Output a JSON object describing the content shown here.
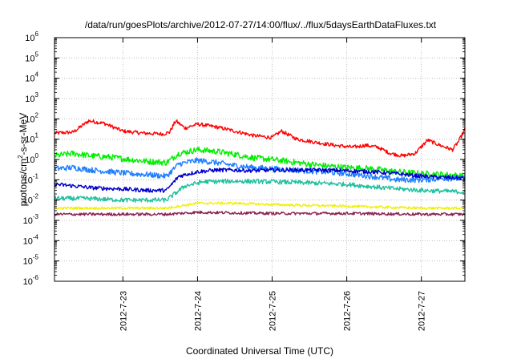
{
  "chart_data": {
    "type": "line",
    "title": "/data/run/goesPlots/archive/2012-07-27/14:00/flux/../flux/5daysEarthDataFluxes.txt",
    "xlabel": "Coordinated Universal Time (UTC)",
    "ylabel_base": "protons/cm",
    "ylabel_sup": "2",
    "ylabel_rest": "-s-sr-MeV",
    "y_scale": "log",
    "ylim": [
      1e-06,
      1000000.0
    ],
    "xlim": [
      "2012-07-22 02:00",
      "2012-07-27 14:00"
    ],
    "grid": true,
    "y_tick_labels": [
      {
        "value": 1e-06,
        "base": "10",
        "exp": "-6"
      },
      {
        "value": 1e-05,
        "base": "10",
        "exp": "-5"
      },
      {
        "value": 0.0001,
        "base": "10",
        "exp": "-4"
      },
      {
        "value": 0.001,
        "base": "10",
        "exp": "-3"
      },
      {
        "value": 0.01,
        "base": "10",
        "exp": "-2"
      },
      {
        "value": 0.1,
        "base": "10",
        "exp": "-1"
      },
      {
        "value": 1.0,
        "base": "10",
        "exp": "0"
      },
      {
        "value": 10.0,
        "base": "10",
        "exp": "1"
      },
      {
        "value": 100.0,
        "base": "10",
        "exp": "2"
      },
      {
        "value": 1000.0,
        "base": "10",
        "exp": "3"
      },
      {
        "value": 10000.0,
        "base": "10",
        "exp": "4"
      },
      {
        "value": 100000.0,
        "base": "10",
        "exp": "5"
      },
      {
        "value": 1000000.0,
        "base": "10",
        "exp": "6"
      }
    ],
    "x_ticks": [
      {
        "date": "2012-07-23 00:00",
        "label": "2012-7-23"
      },
      {
        "date": "2012-07-24 00:00",
        "label": "2012-7-24"
      },
      {
        "date": "2012-07-25 00:00",
        "label": "2012-7-25"
      },
      {
        "date": "2012-07-26 00:00",
        "label": "2012-7-26"
      },
      {
        "date": "2012-07-27 00:00",
        "label": "2012-7-27"
      }
    ],
    "series": [
      {
        "color": "#ff0000",
        "noise": 0.09,
        "points": [
          [
            "2012-07-22 02:00",
            20
          ],
          [
            "2012-07-22 08:00",
            22
          ],
          [
            "2012-07-22 13:00",
            80
          ],
          [
            "2012-07-22 18:00",
            60
          ],
          [
            "2012-07-23 00:00",
            25
          ],
          [
            "2012-07-23 06:00",
            20
          ],
          [
            "2012-07-23 13:00",
            18
          ],
          [
            "2012-07-23 15:00",
            22
          ],
          [
            "2012-07-23 17:00",
            80
          ],
          [
            "2012-07-23 20:00",
            35
          ],
          [
            "2012-07-24 00:00",
            55
          ],
          [
            "2012-07-24 06:00",
            40
          ],
          [
            "2012-07-24 12:00",
            25
          ],
          [
            "2012-07-24 18:00",
            15
          ],
          [
            "2012-07-25 00:00",
            12
          ],
          [
            "2012-07-25 03:00",
            25
          ],
          [
            "2012-07-25 08:00",
            10
          ],
          [
            "2012-07-25 14:00",
            7
          ],
          [
            "2012-07-25 20:00",
            5
          ],
          [
            "2012-07-26 02:00",
            4
          ],
          [
            "2012-07-26 06:00",
            5
          ],
          [
            "2012-07-26 10:00",
            4
          ],
          [
            "2012-07-26 14:00",
            2
          ],
          [
            "2012-07-26 18:00",
            1.5
          ],
          [
            "2012-07-26 22:00",
            2
          ],
          [
            "2012-07-27 02:00",
            9
          ],
          [
            "2012-07-27 06:00",
            5
          ],
          [
            "2012-07-27 10:00",
            3
          ],
          [
            "2012-07-27 12:00",
            8
          ],
          [
            "2012-07-27 14:00",
            30
          ]
        ]
      },
      {
        "color": "#00ee00",
        "noise": 0.15,
        "points": [
          [
            "2012-07-22 02:00",
            1.5
          ],
          [
            "2012-07-22 08:00",
            2.0
          ],
          [
            "2012-07-22 14:00",
            1.5
          ],
          [
            "2012-07-22 20:00",
            1.3
          ],
          [
            "2012-07-23 02:00",
            1.0
          ],
          [
            "2012-07-23 08:00",
            0.8
          ],
          [
            "2012-07-23 14:00",
            0.7
          ],
          [
            "2012-07-23 18:00",
            2.0
          ],
          [
            "2012-07-24 00:00",
            3.0
          ],
          [
            "2012-07-24 06:00",
            2.5
          ],
          [
            "2012-07-24 12:00",
            1.8
          ],
          [
            "2012-07-24 18:00",
            1.2
          ],
          [
            "2012-07-25 00:00",
            1.0
          ],
          [
            "2012-07-25 08:00",
            0.7
          ],
          [
            "2012-07-25 16:00",
            0.5
          ],
          [
            "2012-07-26 00:00",
            0.4
          ],
          [
            "2012-07-26 08:00",
            0.35
          ],
          [
            "2012-07-26 16:00",
            0.25
          ],
          [
            "2012-07-27 00:00",
            0.2
          ],
          [
            "2012-07-27 08:00",
            0.18
          ],
          [
            "2012-07-27 14:00",
            0.15
          ]
        ]
      },
      {
        "color": "#1e7fff",
        "noise": 0.14,
        "points": [
          [
            "2012-07-22 02:00",
            0.35
          ],
          [
            "2012-07-22 08:00",
            0.4
          ],
          [
            "2012-07-22 14:00",
            0.3
          ],
          [
            "2012-07-22 20:00",
            0.25
          ],
          [
            "2012-07-23 02:00",
            0.2
          ],
          [
            "2012-07-23 08:00",
            0.18
          ],
          [
            "2012-07-23 14:00",
            0.15
          ],
          [
            "2012-07-23 18:00",
            0.6
          ],
          [
            "2012-07-24 00:00",
            0.9
          ],
          [
            "2012-07-24 06:00",
            0.7
          ],
          [
            "2012-07-24 12:00",
            0.5
          ],
          [
            "2012-07-24 18:00",
            0.4
          ],
          [
            "2012-07-25 00:00",
            0.35
          ],
          [
            "2012-07-25 08:00",
            0.3
          ],
          [
            "2012-07-25 16:00",
            0.25
          ],
          [
            "2012-07-26 00:00",
            0.2
          ],
          [
            "2012-07-26 08:00",
            0.15
          ],
          [
            "2012-07-26 16:00",
            0.1
          ],
          [
            "2012-07-27 00:00",
            0.1
          ],
          [
            "2012-07-27 08:00",
            0.12
          ],
          [
            "2012-07-27 14:00",
            0.11
          ]
        ]
      },
      {
        "color": "#0000cc",
        "noise": 0.1,
        "points": [
          [
            "2012-07-22 02:00",
            0.06
          ],
          [
            "2012-07-22 08:00",
            0.05
          ],
          [
            "2012-07-22 14:00",
            0.04
          ],
          [
            "2012-07-23 00:00",
            0.035
          ],
          [
            "2012-07-23 08:00",
            0.03
          ],
          [
            "2012-07-23 14:00",
            0.03
          ],
          [
            "2012-07-23 18:00",
            0.15
          ],
          [
            "2012-07-24 00:00",
            0.25
          ],
          [
            "2012-07-24 06:00",
            0.3
          ],
          [
            "2012-07-24 12:00",
            0.3
          ],
          [
            "2012-07-24 18:00",
            0.28
          ],
          [
            "2012-07-25 00:00",
            0.3
          ],
          [
            "2012-07-25 08:00",
            0.3
          ],
          [
            "2012-07-25 16:00",
            0.3
          ],
          [
            "2012-07-26 00:00",
            0.28
          ],
          [
            "2012-07-26 08:00",
            0.25
          ],
          [
            "2012-07-26 16:00",
            0.2
          ],
          [
            "2012-07-27 00:00",
            0.15
          ],
          [
            "2012-07-27 08:00",
            0.13
          ],
          [
            "2012-07-27 14:00",
            0.12
          ]
        ]
      },
      {
        "color": "#20c0a0",
        "noise": 0.11,
        "points": [
          [
            "2012-07-22 02:00",
            0.012
          ],
          [
            "2012-07-22 12:00",
            0.012
          ],
          [
            "2012-07-23 00:00",
            0.01
          ],
          [
            "2012-07-23 14:00",
            0.01
          ],
          [
            "2012-07-23 20:00",
            0.05
          ],
          [
            "2012-07-24 02:00",
            0.08
          ],
          [
            "2012-07-24 12:00",
            0.085
          ],
          [
            "2012-07-25 00:00",
            0.08
          ],
          [
            "2012-07-25 12:00",
            0.07
          ],
          [
            "2012-07-26 00:00",
            0.06
          ],
          [
            "2012-07-26 12:00",
            0.04
          ],
          [
            "2012-07-27 00:00",
            0.03
          ],
          [
            "2012-07-27 14:00",
            0.025
          ]
        ]
      },
      {
        "color": "#f0f000",
        "noise": 0.06,
        "points": [
          [
            "2012-07-22 02:00",
            0.004
          ],
          [
            "2012-07-23 00:00",
            0.004
          ],
          [
            "2012-07-23 14:00",
            0.004
          ],
          [
            "2012-07-24 00:00",
            0.007
          ],
          [
            "2012-07-24 12:00",
            0.007
          ],
          [
            "2012-07-25 00:00",
            0.006
          ],
          [
            "2012-07-26 00:00",
            0.005
          ],
          [
            "2012-07-27 00:00",
            0.004
          ],
          [
            "2012-07-27 14:00",
            0.004
          ]
        ]
      },
      {
        "color": "#8b2252",
        "noise": 0.07,
        "points": [
          [
            "2012-07-22 02:00",
            0.002
          ],
          [
            "2012-07-23 00:00",
            0.002
          ],
          [
            "2012-07-23 14:00",
            0.002
          ],
          [
            "2012-07-24 00:00",
            0.0025
          ],
          [
            "2012-07-25 00:00",
            0.0022
          ],
          [
            "2012-07-26 00:00",
            0.0022
          ],
          [
            "2012-07-27 00:00",
            0.002
          ],
          [
            "2012-07-27 14:00",
            0.002
          ]
        ]
      }
    ]
  }
}
